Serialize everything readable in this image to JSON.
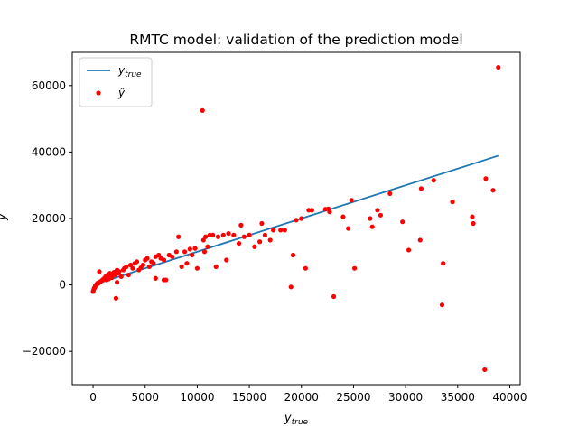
{
  "chart_data": {
    "type": "scatter",
    "title": "RMTC model: validation of the prediction model",
    "xlabel": {
      "base": "y",
      "sub": "true"
    },
    "ylabel": "y",
    "xlim": [
      -2000,
      41000
    ],
    "ylim": [
      -30000,
      70000
    ],
    "xticks": [
      0,
      5000,
      10000,
      15000,
      20000,
      25000,
      30000,
      35000,
      40000
    ],
    "yticks": [
      -20000,
      0,
      20000,
      40000,
      60000
    ],
    "xtick_labels": [
      "0",
      "5000",
      "10000",
      "15000",
      "20000",
      "25000",
      "30000",
      "35000",
      "40000"
    ],
    "ytick_labels": [
      "−20000",
      "0",
      "20000",
      "40000",
      "60000"
    ],
    "grid": false,
    "legend_position": "upper-left",
    "legend": [
      {
        "base": "y",
        "sub": "true",
        "kind": "line"
      },
      {
        "base": "ŷ",
        "sub": "",
        "kind": "marker"
      }
    ],
    "colors": {
      "line": "#1f77b4",
      "points": "#ff0000"
    },
    "series": [
      {
        "kind": "line",
        "x": [
          0,
          38900
        ],
        "y": [
          0,
          38900
        ]
      },
      {
        "kind": "scatter",
        "x": [
          0,
          50,
          100,
          150,
          200,
          250,
          300,
          350,
          400,
          450,
          500,
          550,
          600,
          650,
          700,
          800,
          900,
          1000,
          1100,
          1200,
          1300,
          1400,
          1500,
          1600,
          1700,
          1800,
          1900,
          2000,
          2100,
          2200,
          2300,
          2400,
          2500,
          2700,
          2900,
          3000,
          3200,
          3400,
          3600,
          3800,
          4000,
          4200,
          4400,
          4600,
          4800,
          5000,
          5200,
          5400,
          5600,
          5800,
          6000,
          6300,
          6500,
          6800,
          7000,
          7300,
          7600,
          8000,
          8200,
          8500,
          8800,
          9000,
          9300,
          9500,
          9800,
          10000,
          10500,
          10600,
          10800,
          11000,
          11200,
          11500,
          11800,
          12000,
          12500,
          12800,
          13000,
          13500,
          14000,
          14200,
          14500,
          15000,
          15500,
          16000,
          16200,
          16500,
          17000,
          17300,
          18000,
          18400,
          19000,
          19200,
          19500,
          20000,
          20400,
          20700,
          21000,
          22300,
          22600,
          22700,
          23100,
          24000,
          24500,
          24800,
          25100,
          26600,
          26800,
          27300,
          27600,
          28500,
          29700,
          30300,
          31400,
          31500,
          32700,
          33500,
          33600,
          34500,
          36400,
          36500,
          37600,
          37700,
          38400,
          38900,
          300,
          500,
          700,
          2200,
          6000,
          6800,
          10700,
          2300
        ],
        "y": [
          -2000,
          -1500,
          -1000,
          -800,
          -500,
          -300,
          0,
          200,
          400,
          600,
          500,
          700,
          4000,
          800,
          1000,
          1200,
          1500,
          1800,
          2000,
          2500,
          1500,
          3000,
          1800,
          3500,
          2500,
          2200,
          3000,
          3800,
          3000,
          4000,
          800,
          3500,
          4000,
          2500,
          4500,
          5000,
          5500,
          3000,
          6000,
          5000,
          6500,
          7000,
          4500,
          5200,
          6000,
          7500,
          8000,
          5500,
          7000,
          6500,
          8500,
          9000,
          8000,
          7500,
          1500,
          9000,
          8500,
          10000,
          14500,
          5500,
          10000,
          6500,
          10800,
          9000,
          11000,
          5000,
          52500,
          13500,
          14500,
          11500,
          15000,
          15000,
          5500,
          14500,
          15000,
          7500,
          15500,
          15000,
          12500,
          18000,
          14500,
          15000,
          11500,
          13000,
          18500,
          15000,
          13500,
          16500,
          16500,
          16500,
          -600,
          9000,
          19500,
          20000,
          5000,
          22500,
          22500,
          22800,
          22900,
          22000,
          -3500,
          20500,
          17000,
          25500,
          5000,
          20000,
          17500,
          22500,
          21000,
          27500,
          19000,
          10500,
          13500,
          29000,
          31500,
          -6000,
          6500,
          25000,
          20500,
          18500,
          -25500,
          32000,
          28500,
          65500,
          0,
          500,
          1000,
          -4000,
          2000,
          1500,
          10000,
          4500
        ]
      }
    ]
  }
}
